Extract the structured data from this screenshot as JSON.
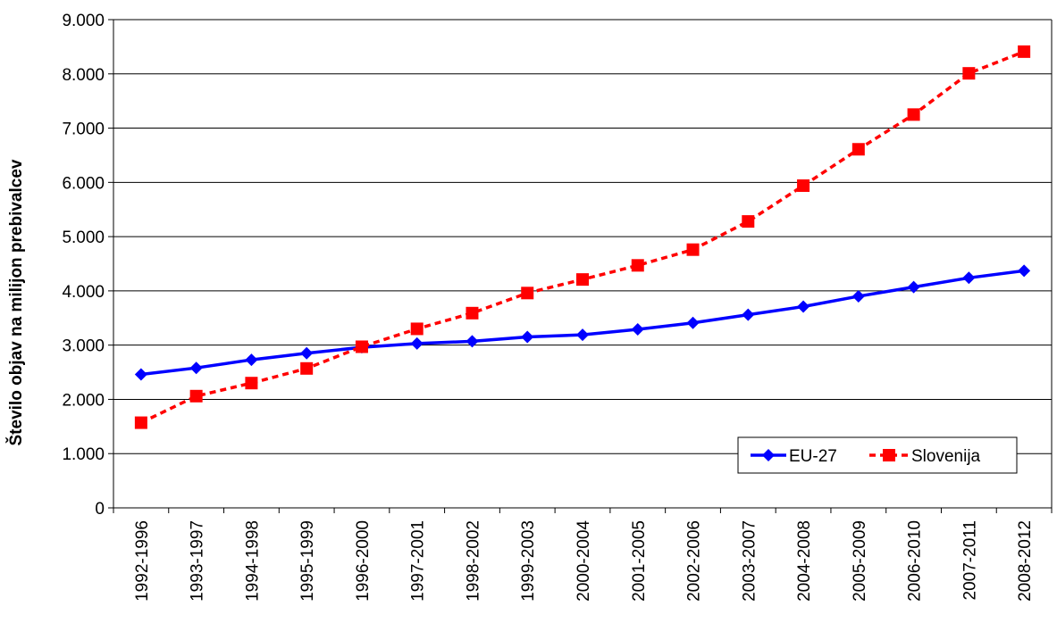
{
  "chart_data": {
    "type": "line",
    "title": "",
    "xlabel": "",
    "ylabel": "Število objav na milijon prebivalcev",
    "ylim": [
      0,
      9000
    ],
    "yticks": [
      0,
      1000,
      2000,
      3000,
      4000,
      5000,
      6000,
      7000,
      8000,
      9000
    ],
    "ytick_labels": [
      "0",
      "1.000",
      "2.000",
      "3.000",
      "4.000",
      "5.000",
      "6.000",
      "7.000",
      "8.000",
      "9.000"
    ],
    "grid": true,
    "legend_position": "bottom-right",
    "categories": [
      "1992-1996",
      "1993-1997",
      "1994-1998",
      "1995-1999",
      "1996-2000",
      "1997-2001",
      "1998-2002",
      "1999-2003",
      "2000-2004",
      "2001-2005",
      "2002-2006",
      "2003-2007",
      "2004-2008",
      "2005-2009",
      "2006-2010",
      "2007-2011",
      "2008-2012"
    ],
    "series": [
      {
        "name": "EU-27",
        "color": "#0000ff",
        "marker": "diamond",
        "line_style": "solid",
        "values": [
          2460,
          2580,
          2730,
          2850,
          2960,
          3030,
          3070,
          3150,
          3190,
          3290,
          3410,
          3560,
          3710,
          3900,
          4070,
          4240,
          4370
        ]
      },
      {
        "name": "Slovenija",
        "color": "#ff0000",
        "marker": "square",
        "line_style": "dashed",
        "values": [
          1570,
          2060,
          2300,
          2570,
          2970,
          3300,
          3590,
          3960,
          4210,
          4470,
          4760,
          5280,
          5940,
          6610,
          7250,
          8010,
          8410
        ]
      }
    ]
  }
}
